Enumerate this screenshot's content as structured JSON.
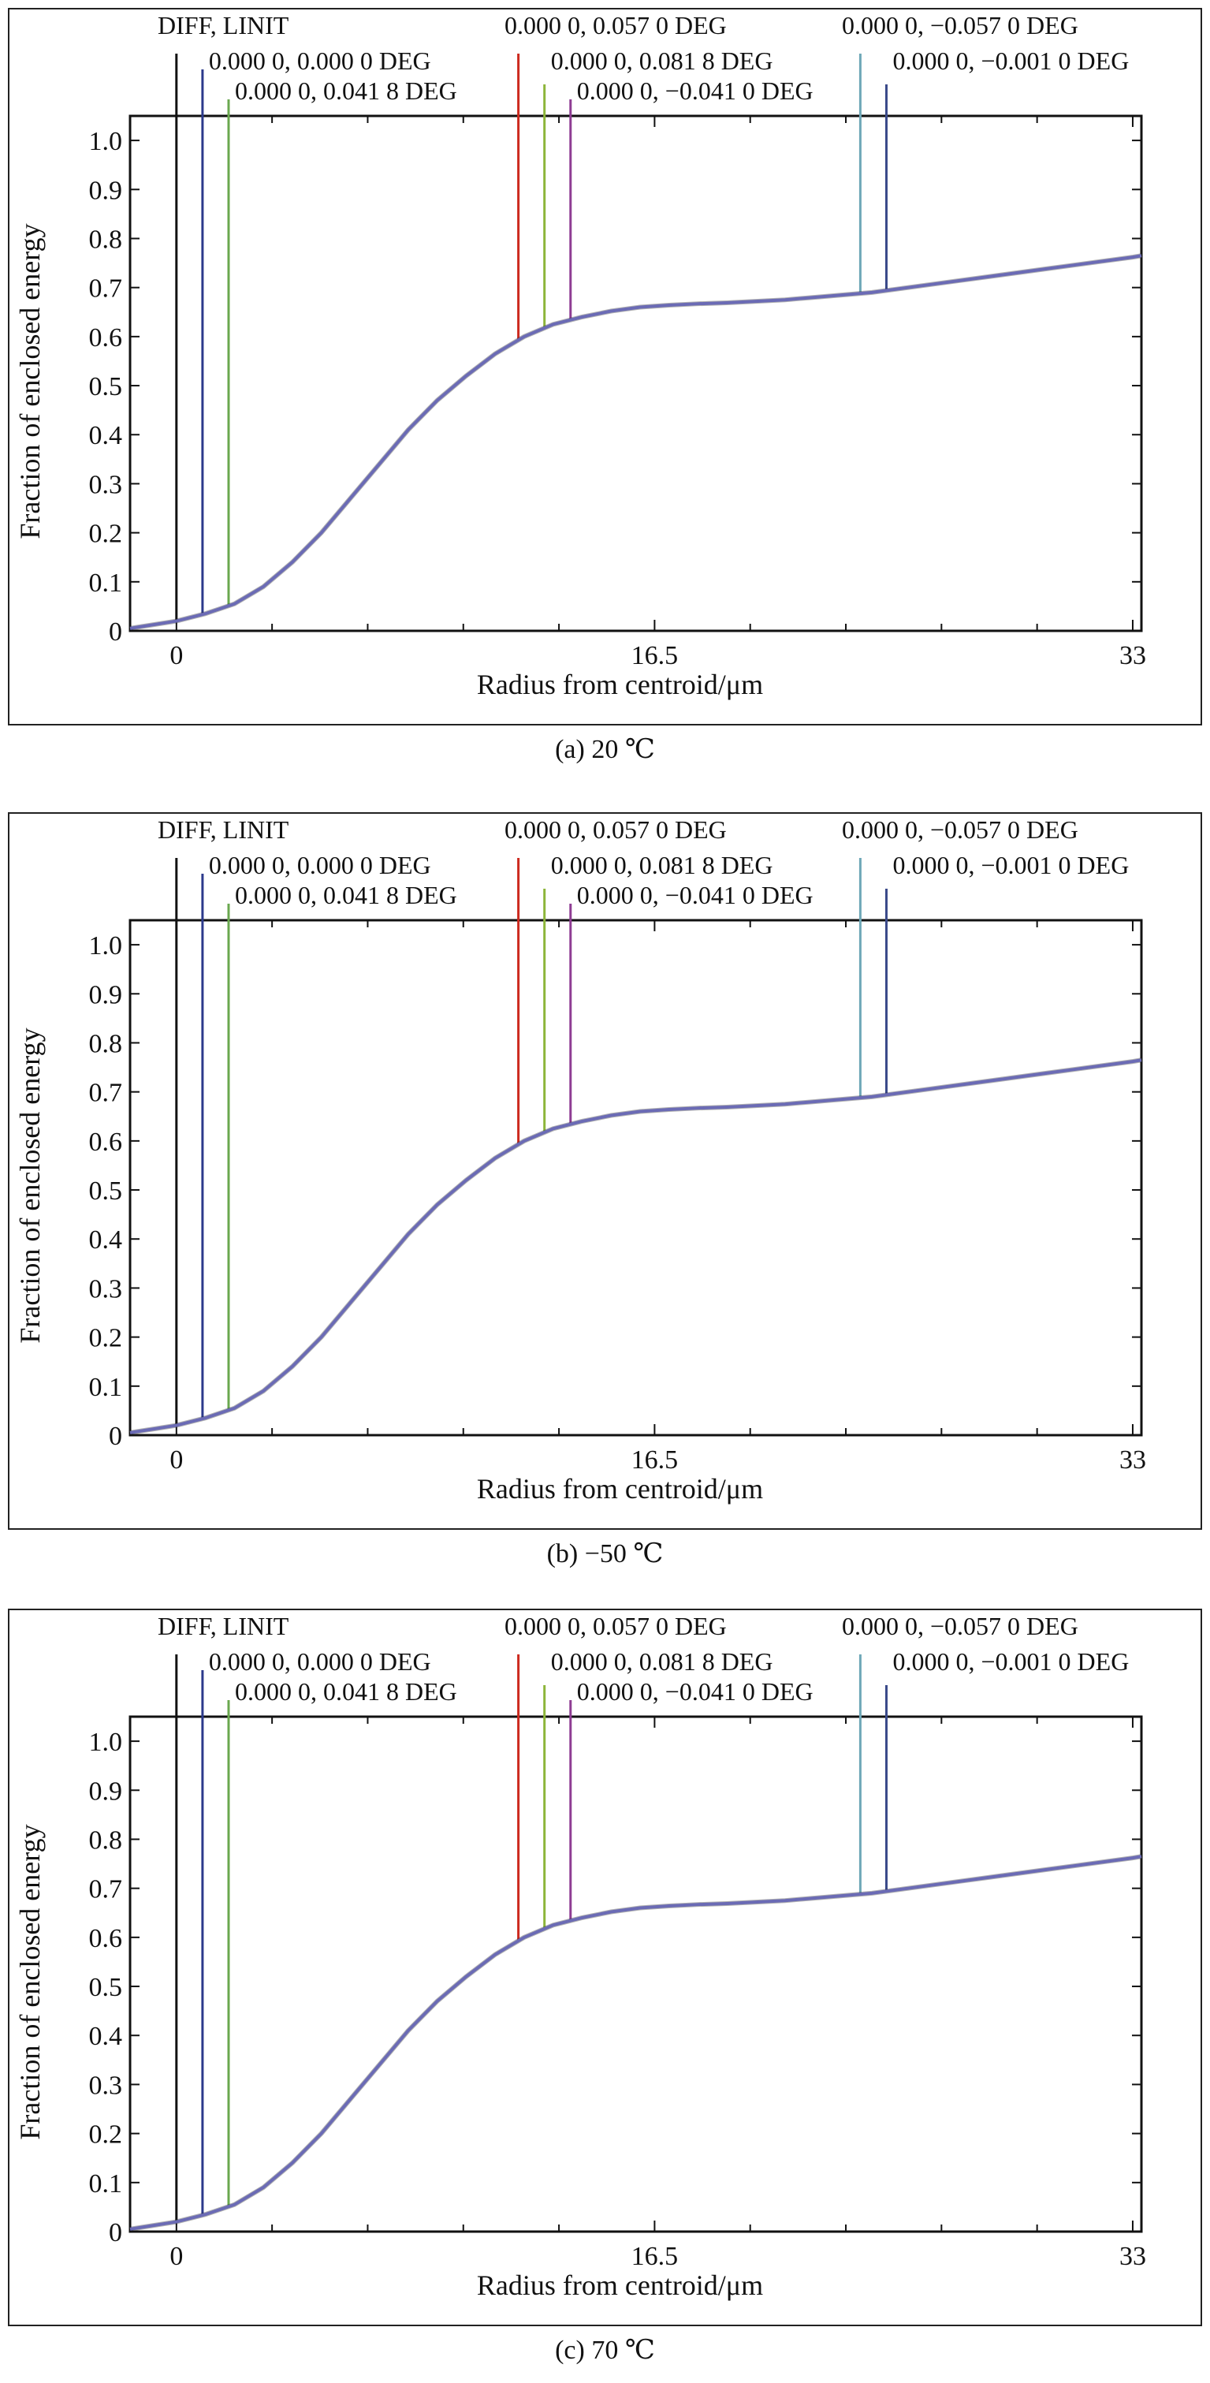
{
  "colors": {
    "DIFF, LINIT": "#111111",
    "0.000 0, 0.000 0  DEG": "#2c3a8c",
    "0.000 0, 0.041 8  DEG": "#6aa84f",
    "0.000 0, 0.057 0  DEG": "#cc2a1f",
    "0.000 0, 0.081 8  DEG": "#8db53a",
    "0.000 0, −0.041 0  DEG": "#8e3c93",
    "0.000 0, −0.057 0  DEG": "#6fa8b8",
    "0.000 0, −0.001 0  DEG": "#3b4a8a",
    "curve": "#6b6bb5"
  },
  "chart_data": [
    {
      "type": "line",
      "panel": "a",
      "caption": "(a) 20 ℃",
      "xlabel": "Radius from centroid/μm",
      "ylabel": "Fraction of enclosed energy",
      "x_ticks": [
        "0",
        "16.5",
        "33"
      ],
      "y_ticks": [
        "0",
        "0.1",
        "0.2",
        "0.3",
        "0.4",
        "0.5",
        "0.6",
        "0.7",
        "0.8",
        "0.9",
        "1.0"
      ],
      "xlim": [
        -1.6,
        33.3
      ],
      "ylim": [
        0,
        1.05
      ],
      "grid": false,
      "legend": "top",
      "series": [
        {
          "name": "DIFF, LINIT",
          "marker_x": 0.0
        },
        {
          "name": "0.000 0, 0.000 0  DEG",
          "marker_x": 0.9
        },
        {
          "name": "0.000 0, 0.041 8  DEG",
          "marker_x": 1.8
        },
        {
          "name": "0.000 0, 0.057 0  DEG",
          "marker_x": 11.8
        },
        {
          "name": "0.000 0, 0.081 8  DEG",
          "marker_x": 12.7
        },
        {
          "name": "0.000 0, −0.041 0  DEG",
          "marker_x": 13.6
        },
        {
          "name": "0.000 0, −0.057 0  DEG",
          "marker_x": 23.6
        },
        {
          "name": "0.000 0, −0.001 0  DEG",
          "marker_x": 24.5
        }
      ],
      "curve": {
        "x": [
          -1.6,
          0,
          1,
          2,
          3,
          4,
          5,
          6,
          7,
          8,
          9,
          10,
          11,
          12,
          13,
          14,
          15,
          16,
          17,
          18,
          19,
          20,
          21,
          22,
          23,
          24,
          25,
          26,
          27,
          28,
          29,
          30,
          31,
          32,
          33,
          33.3
        ],
        "y": [
          0.005,
          0.02,
          0.035,
          0.055,
          0.09,
          0.14,
          0.2,
          0.27,
          0.34,
          0.41,
          0.47,
          0.52,
          0.565,
          0.6,
          0.625,
          0.64,
          0.652,
          0.66,
          0.664,
          0.667,
          0.669,
          0.672,
          0.675,
          0.68,
          0.685,
          0.69,
          0.698,
          0.706,
          0.714,
          0.722,
          0.73,
          0.738,
          0.746,
          0.754,
          0.762,
          0.765
        ]
      }
    },
    {
      "type": "line",
      "panel": "b",
      "caption": "(b) −50 ℃",
      "xlabel": "Radius from centroid/μm",
      "ylabel": "Fraction of enclosed energy",
      "x_ticks": [
        "0",
        "16.5",
        "33"
      ],
      "y_ticks": [
        "0",
        "0.1",
        "0.2",
        "0.3",
        "0.4",
        "0.5",
        "0.6",
        "0.7",
        "0.8",
        "0.9",
        "1.0"
      ],
      "xlim": [
        -1.6,
        33.3
      ],
      "ylim": [
        0,
        1.05
      ],
      "grid": false,
      "legend": "top",
      "series": [
        {
          "name": "DIFF, LINIT",
          "marker_x": 0.0
        },
        {
          "name": "0.000 0, 0.000 0  DEG",
          "marker_x": 0.9
        },
        {
          "name": "0.000 0, 0.041 8  DEG",
          "marker_x": 1.8
        },
        {
          "name": "0.000 0, 0.057 0  DEG",
          "marker_x": 11.8
        },
        {
          "name": "0.000 0, 0.081 8  DEG",
          "marker_x": 12.7
        },
        {
          "name": "0.000 0, −0.041 0  DEG",
          "marker_x": 13.6
        },
        {
          "name": "0.000 0, −0.057 0  DEG",
          "marker_x": 23.6
        },
        {
          "name": "0.000 0, −0.001 0  DEG",
          "marker_x": 24.5
        }
      ],
      "curve": {
        "x": [
          -1.6,
          0,
          1,
          2,
          3,
          4,
          5,
          6,
          7,
          8,
          9,
          10,
          11,
          12,
          13,
          14,
          15,
          16,
          17,
          18,
          19,
          20,
          21,
          22,
          23,
          24,
          25,
          26,
          27,
          28,
          29,
          30,
          31,
          32,
          33,
          33.3
        ],
        "y": [
          0.005,
          0.02,
          0.035,
          0.055,
          0.09,
          0.14,
          0.2,
          0.27,
          0.34,
          0.41,
          0.47,
          0.52,
          0.565,
          0.6,
          0.625,
          0.64,
          0.652,
          0.66,
          0.664,
          0.667,
          0.669,
          0.672,
          0.675,
          0.68,
          0.685,
          0.69,
          0.698,
          0.706,
          0.714,
          0.722,
          0.73,
          0.738,
          0.746,
          0.754,
          0.762,
          0.765
        ]
      }
    },
    {
      "type": "line",
      "panel": "c",
      "caption": "(c) 70 ℃",
      "xlabel": "Radius from centroid/μm",
      "ylabel": "Fraction of enclosed energy",
      "x_ticks": [
        "0",
        "16.5",
        "33"
      ],
      "y_ticks": [
        "0",
        "0.1",
        "0.2",
        "0.3",
        "0.4",
        "0.5",
        "0.6",
        "0.7",
        "0.8",
        "0.9",
        "1.0"
      ],
      "xlim": [
        -1.6,
        33.3
      ],
      "ylim": [
        0,
        1.05
      ],
      "grid": false,
      "legend": "top",
      "series": [
        {
          "name": "DIFF, LINIT",
          "marker_x": 0.0
        },
        {
          "name": "0.000 0, 0.000 0  DEG",
          "marker_x": 0.9
        },
        {
          "name": "0.000 0, 0.041 8  DEG",
          "marker_x": 1.8
        },
        {
          "name": "0.000 0, 0.057 0  DEG",
          "marker_x": 11.8
        },
        {
          "name": "0.000 0, 0.081 8  DEG",
          "marker_x": 12.7
        },
        {
          "name": "0.000 0, −0.041 0  DEG",
          "marker_x": 13.6
        },
        {
          "name": "0.000 0, −0.057 0  DEG",
          "marker_x": 23.6
        },
        {
          "name": "0.000 0, −0.001 0  DEG",
          "marker_x": 24.5
        }
      ],
      "curve": {
        "x": [
          -1.6,
          0,
          1,
          2,
          3,
          4,
          5,
          6,
          7,
          8,
          9,
          10,
          11,
          12,
          13,
          14,
          15,
          16,
          17,
          18,
          19,
          20,
          21,
          22,
          23,
          24,
          25,
          26,
          27,
          28,
          29,
          30,
          31,
          32,
          33,
          33.3
        ],
        "y": [
          0.005,
          0.02,
          0.035,
          0.055,
          0.09,
          0.14,
          0.2,
          0.27,
          0.34,
          0.41,
          0.47,
          0.52,
          0.565,
          0.6,
          0.625,
          0.64,
          0.652,
          0.66,
          0.664,
          0.667,
          0.669,
          0.672,
          0.675,
          0.68,
          0.685,
          0.69,
          0.698,
          0.706,
          0.714,
          0.722,
          0.73,
          0.738,
          0.746,
          0.754,
          0.762,
          0.765
        ]
      }
    }
  ]
}
